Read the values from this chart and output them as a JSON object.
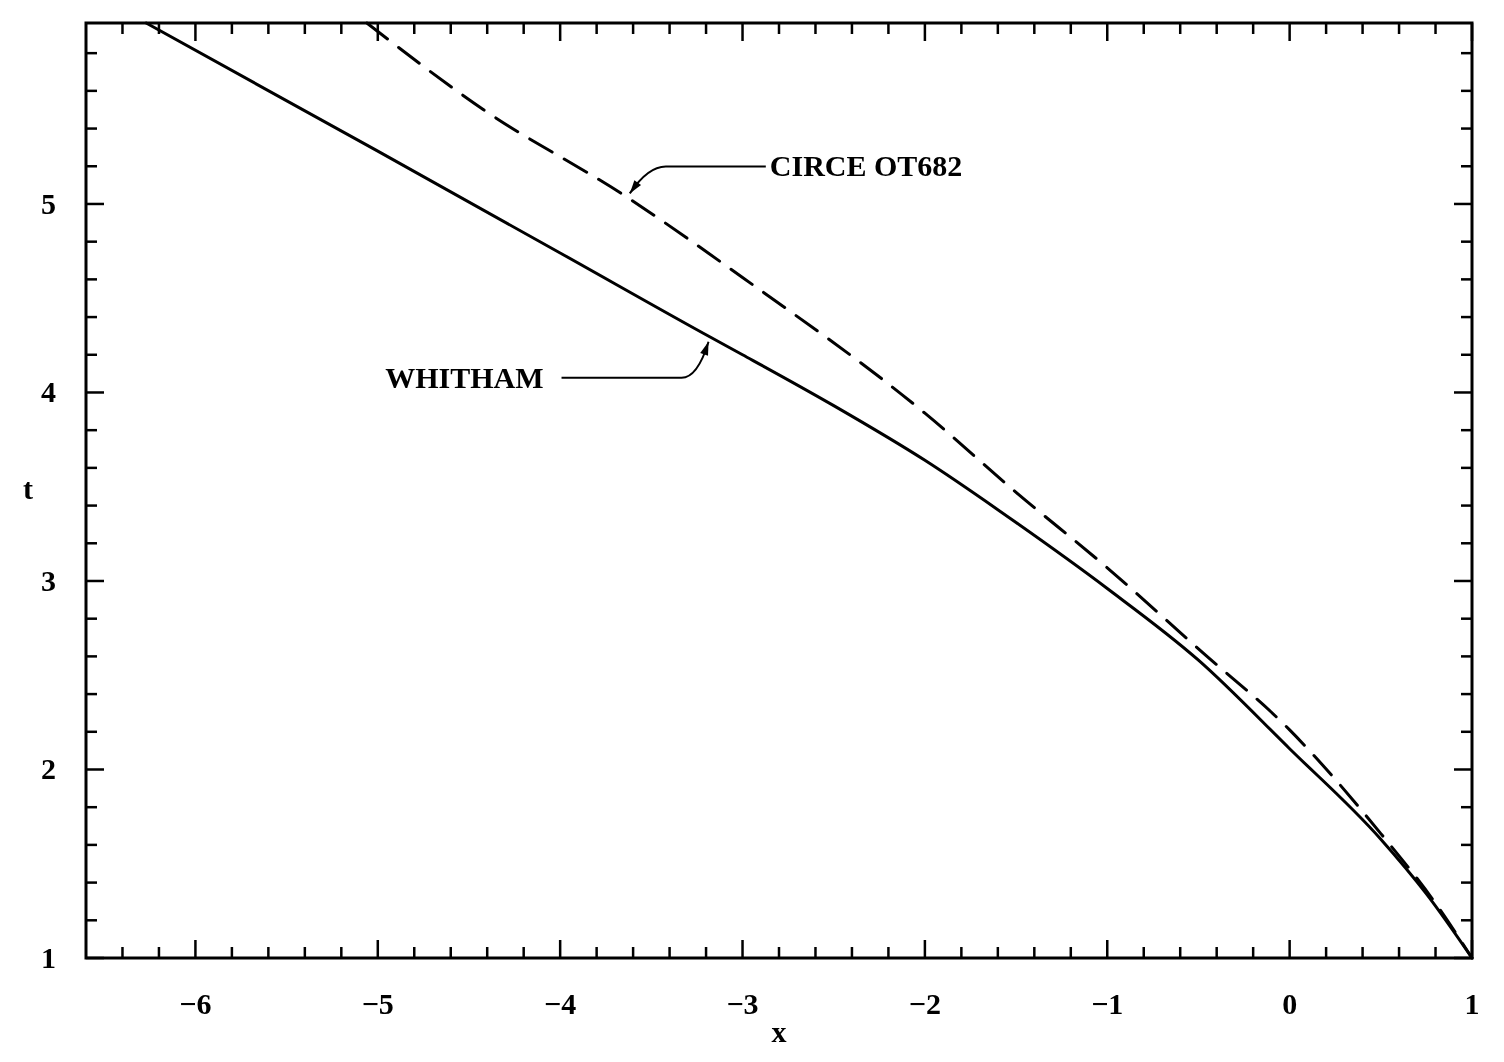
{
  "chart_data": {
    "type": "line",
    "xlabel": "x",
    "ylabel": "t",
    "xlim": [
      -6.6,
      1
    ],
    "ylim": [
      1,
      5.96
    ],
    "xticks": [
      {
        "value": -6.4,
        "label": null
      },
      {
        "value": -6.2,
        "label": null
      },
      {
        "value": -6,
        "label": "−6"
      },
      {
        "value": -5.8,
        "label": null
      },
      {
        "value": -5.6,
        "label": null
      },
      {
        "value": -5.4,
        "label": null
      },
      {
        "value": -5.2,
        "label": null
      },
      {
        "value": -5,
        "label": "−5"
      },
      {
        "value": -4.8,
        "label": null
      },
      {
        "value": -4.6,
        "label": null
      },
      {
        "value": -4.4,
        "label": null
      },
      {
        "value": -4.2,
        "label": null
      },
      {
        "value": -4,
        "label": "−4"
      },
      {
        "value": -3.8,
        "label": null
      },
      {
        "value": -3.6,
        "label": null
      },
      {
        "value": -3.4,
        "label": null
      },
      {
        "value": -3.2,
        "label": null
      },
      {
        "value": -3,
        "label": "−3"
      },
      {
        "value": -2.8,
        "label": null
      },
      {
        "value": -2.6,
        "label": null
      },
      {
        "value": -2.4,
        "label": null
      },
      {
        "value": -2.2,
        "label": null
      },
      {
        "value": -2,
        "label": "−2"
      },
      {
        "value": -1.8,
        "label": null
      },
      {
        "value": -1.6,
        "label": null
      },
      {
        "value": -1.4,
        "label": null
      },
      {
        "value": -1.2,
        "label": null
      },
      {
        "value": -1,
        "label": "−1"
      },
      {
        "value": -0.8,
        "label": null
      },
      {
        "value": -0.6,
        "label": null
      },
      {
        "value": -0.4,
        "label": null
      },
      {
        "value": -0.2,
        "label": null
      },
      0,
      {
        "value": 0.2,
        "label": null
      },
      {
        "value": 0.4,
        "label": null
      },
      {
        "value": 0.6,
        "label": null
      },
      {
        "value": 0.8,
        "label": null
      },
      1
    ],
    "yticks": [
      1,
      {
        "value": 1.2,
        "label": null
      },
      {
        "value": 1.4,
        "label": null
      },
      {
        "value": 1.6,
        "label": null
      },
      {
        "value": 1.8,
        "label": null
      },
      2,
      {
        "value": 2.2,
        "label": null
      },
      {
        "value": 2.4,
        "label": null
      },
      {
        "value": 2.6,
        "label": null
      },
      {
        "value": 2.8,
        "label": null
      },
      3,
      {
        "value": 3.2,
        "label": null
      },
      {
        "value": 3.4,
        "label": null
      },
      {
        "value": 3.6,
        "label": null
      },
      {
        "value": 3.8,
        "label": null
      },
      4,
      {
        "value": 4.2,
        "label": null
      },
      {
        "value": 4.4,
        "label": null
      },
      {
        "value": 4.6,
        "label": null
      },
      {
        "value": 4.8,
        "label": null
      },
      5,
      {
        "value": 5.2,
        "label": null
      },
      {
        "value": 5.4,
        "label": null
      },
      {
        "value": 5.6,
        "label": null
      },
      {
        "value": 5.8,
        "label": null
      }
    ],
    "series": [
      {
        "color": "#000000",
        "line_style": "solid",
        "x": [
          -6.27,
          -5,
          -4,
          -3.17,
          -3,
          -2.5,
          -2,
          -1.5,
          -1,
          -0.5,
          0,
          0.5,
          0.75,
          1
        ],
        "values": [
          5.96,
          5.28,
          4.74,
          4.29,
          4.2,
          3.93,
          3.64,
          3.31,
          2.96,
          2.58,
          2.11,
          1.63,
          1.34,
          1
        ]
      },
      {
        "color": "#000000",
        "line_style": "dashed",
        "x": [
          -5.06,
          -4.42,
          -3.64,
          -3,
          -2,
          -1.5,
          -1,
          -0.5,
          0,
          0.5,
          0.8,
          1
        ],
        "values": [
          5.96,
          5.5,
          5.04,
          4.61,
          3.89,
          3.47,
          3.07,
          2.64,
          2.21,
          1.66,
          1.29,
          1
        ]
      }
    ],
    "annotations": [
      {
        "text": "CIRCE  OT682",
        "x": -3.64,
        "y": 5.04
      },
      {
        "text": "WHITHAM",
        "x": -3.17,
        "y": 4.29
      }
    ]
  }
}
